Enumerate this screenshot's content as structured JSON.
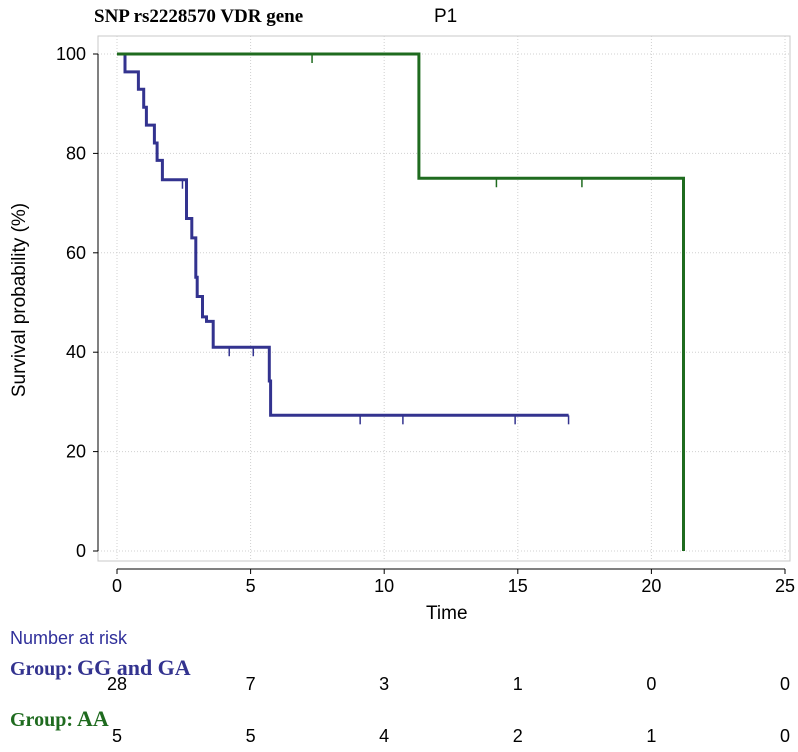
{
  "title": "SNP rs2228570 VDR gene",
  "subtitle": "P1",
  "chart_data": {
    "type": "line",
    "chart_style": "kaplan-meier step survival curve",
    "title": "SNP rs2228570 VDR gene",
    "subtitle": "P1",
    "xlabel": "Time",
    "ylabel": "Survival probability (%)",
    "xlim": [
      0,
      25
    ],
    "ylim": [
      0,
      100
    ],
    "xticks": [
      0,
      5,
      10,
      15,
      20,
      25
    ],
    "yticks": [
      0,
      20,
      40,
      60,
      80,
      100
    ],
    "grid": true,
    "series": [
      {
        "name": "GG and GA",
        "color": "#33338f",
        "steps": [
          [
            0,
            100
          ],
          [
            0.3,
            100
          ],
          [
            0.3,
            96.4
          ],
          [
            0.8,
            96.4
          ],
          [
            0.8,
            92.9
          ],
          [
            1.0,
            92.9
          ],
          [
            1.0,
            89.3
          ],
          [
            1.1,
            89.3
          ],
          [
            1.1,
            85.7
          ],
          [
            1.4,
            85.7
          ],
          [
            1.4,
            82.1
          ],
          [
            1.5,
            82.1
          ],
          [
            1.5,
            78.6
          ],
          [
            1.7,
            78.6
          ],
          [
            1.7,
            74.7
          ],
          [
            2.6,
            74.7
          ],
          [
            2.6,
            66.9
          ],
          [
            2.8,
            66.9
          ],
          [
            2.8,
            63.0
          ],
          [
            2.95,
            63.0
          ],
          [
            2.95,
            55.1
          ],
          [
            3.0,
            55.1
          ],
          [
            3.0,
            51.2
          ],
          [
            3.2,
            51.2
          ],
          [
            3.2,
            47.1
          ],
          [
            3.35,
            47.1
          ],
          [
            3.35,
            46.2
          ],
          [
            3.6,
            46.2
          ],
          [
            3.6,
            41.0
          ],
          [
            5.7,
            41.0
          ],
          [
            5.7,
            34.2
          ],
          [
            5.75,
            34.2
          ],
          [
            5.75,
            27.3
          ],
          [
            16.9,
            27.3
          ]
        ],
        "censored": [
          [
            2.45,
            74.7
          ],
          [
            4.2,
            41.0
          ],
          [
            5.1,
            41.0
          ],
          [
            9.1,
            27.3
          ],
          [
            10.7,
            27.3
          ],
          [
            14.9,
            27.3
          ],
          [
            16.9,
            27.3
          ]
        ]
      },
      {
        "name": "AA",
        "color": "#1f6b1f",
        "steps": [
          [
            0,
            100
          ],
          [
            11.3,
            100
          ],
          [
            11.3,
            75
          ],
          [
            21.2,
            75
          ],
          [
            21.2,
            0
          ]
        ],
        "censored": [
          [
            7.3,
            100
          ],
          [
            14.2,
            75
          ],
          [
            17.4,
            75
          ]
        ]
      }
    ]
  },
  "risk_table": {
    "title": "Number at risk",
    "times": [
      0,
      5,
      10,
      15,
      20,
      25
    ],
    "groups": [
      {
        "label": "Group:",
        "name": "GG and GA",
        "color": "#33338f",
        "counts": [
          "28",
          "7",
          "3",
          "1",
          "0",
          "0"
        ]
      },
      {
        "label": "Group:",
        "name": "AA",
        "color": "#1f6b1f",
        "counts": [
          "5",
          "5",
          "4",
          "2",
          "1",
          "0"
        ]
      }
    ]
  }
}
